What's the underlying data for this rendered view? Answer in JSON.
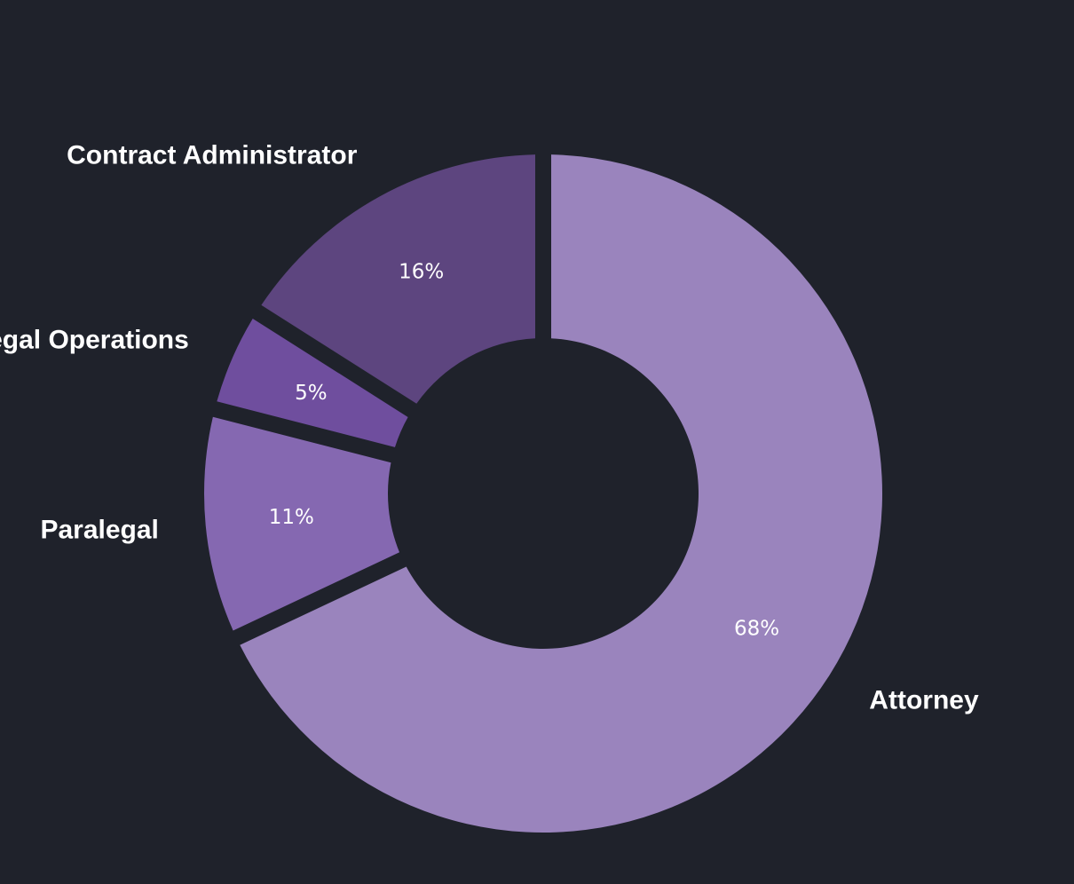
{
  "chart_data": {
    "type": "pie",
    "donut": true,
    "start_angle_deg": 0,
    "direction": "clockwise",
    "slices": [
      {
        "label": "Attorney",
        "value": 68,
        "value_label": "68%",
        "color": "#9a84bd"
      },
      {
        "label": "Paralegal",
        "value": 11,
        "value_label": "11%",
        "color": "#8568b1"
      },
      {
        "label": "Legal Operations",
        "value": 5,
        "value_label": "5%",
        "color": "#6f4e9e"
      },
      {
        "label": "Contract Administrator",
        "value": 16,
        "value_label": "16%",
        "color": "#5d457f"
      }
    ]
  },
  "colors": {
    "background": "#1f222b",
    "text": "#ffffff"
  }
}
